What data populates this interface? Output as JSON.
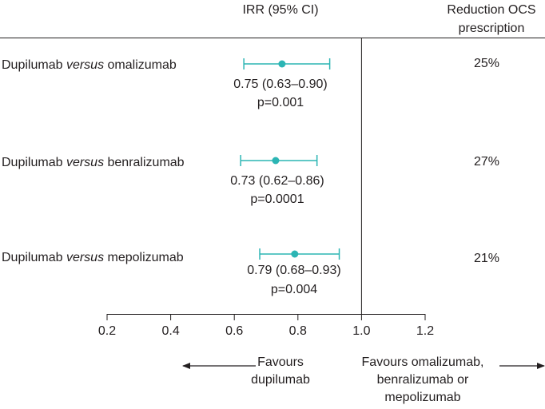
{
  "chart_data": {
    "type": "forest",
    "header": {
      "estimate": "IRR (95% CI)",
      "reduction_line1": "Reduction OCS",
      "reduction_line2": "prescription"
    },
    "comparisons": [
      {
        "label_pre": "Dupilumab ",
        "label_italic": "versus",
        "label_post": " omalizumab",
        "irr": 0.75,
        "ci_low": 0.63,
        "ci_high": 0.9,
        "ci_text": "0.75 (0.63–0.90)",
        "p_text": "p=0.001",
        "reduction": "25%"
      },
      {
        "label_pre": "Dupilumab ",
        "label_italic": "versus",
        "label_post": " benralizumab",
        "irr": 0.73,
        "ci_low": 0.62,
        "ci_high": 0.86,
        "ci_text": "0.73 (0.62–0.86)",
        "p_text": "p=0.0001",
        "reduction": "27%"
      },
      {
        "label_pre": "Dupilumab ",
        "label_italic": "versus",
        "label_post": " mepolizumab",
        "irr": 0.79,
        "ci_low": 0.68,
        "ci_high": 0.93,
        "ci_text": "0.79 (0.68–0.93)",
        "p_text": "p=0.004",
        "reduction": "21%"
      }
    ],
    "x_axis": {
      "min": 0.2,
      "max": 1.2,
      "ticks": [
        0.2,
        0.4,
        0.6,
        0.8,
        1.0,
        1.2
      ],
      "tick_labels": [
        "0.2",
        "0.4",
        "0.6",
        "0.8",
        "1.0",
        "1.2"
      ],
      "reference": 1.0
    },
    "favours_left": [
      "Favours",
      "dupilumab"
    ],
    "favours_right": [
      "Favours omalizumab,",
      "benralizumab or",
      "mepolizumab"
    ]
  },
  "colors": {
    "marker": "#2cb5b4",
    "text": "#231f20",
    "line": "#231f20"
  }
}
